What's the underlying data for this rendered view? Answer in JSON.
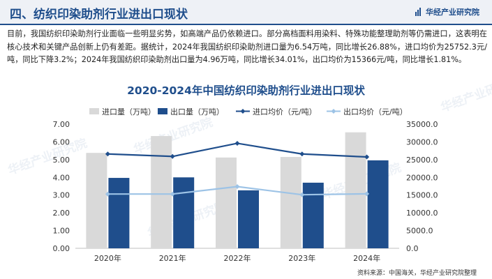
{
  "header": {
    "title": "四、纺织印染助剂行业进出口现状",
    "brand": "华经产业研究院"
  },
  "paragraph": "目前，我国纺织印染助剂行业面临一些明显劣势，如高端产品仍依赖进口。部分高档面料用染料、特殊功能整理助剂等仍需进口，这表明在核心技术和关键产品创新上仍有差距。据统计，2024年我国纺织印染助剂进口量为6.54万吨，同比增长26.88%，进口均价为25752.3元/吨，同比下降3.2%；2024年我国纺织印染助剂出口量为4.96万吨，同比增长34.01%，出口均价为15366元/吨，同比增长1.81%。",
  "source": "资料来源：中国海关，华经产业研究院整理",
  "watermark": "华经产业研究院",
  "colors": {
    "brand": "#1f4e8c",
    "import_volume": "#d9d9d9",
    "export_volume": "#1f4e8c",
    "import_price": "#1f4e8c",
    "export_price": "#9dc3e6"
  },
  "chart_data": {
    "type": "bar",
    "title": "2020-2024年中国纺织印染助剂行业进出口现状",
    "categories": [
      "2020年",
      "2021年",
      "2022年",
      "2023年",
      "2024年"
    ],
    "series": [
      {
        "name": "进口量（万吨）",
        "kind": "bar",
        "axis": "left",
        "values": [
          5.38,
          6.33,
          5.12,
          5.15,
          6.54
        ]
      },
      {
        "name": "出口量（万吨）",
        "kind": "bar",
        "axis": "left",
        "values": [
          3.97,
          4.0,
          3.27,
          3.7,
          4.96
        ]
      },
      {
        "name": "进口均价（元/吨）",
        "kind": "line",
        "axis": "right",
        "values": [
          26600,
          25900,
          29600,
          26600,
          25752.3
        ]
      },
      {
        "name": "出口均价（元/吨）",
        "kind": "line",
        "axis": "right",
        "values": [
          15300,
          15300,
          17400,
          15100,
          15366
        ]
      }
    ],
    "ylim_left": [
      0,
      7
    ],
    "ylim_right": [
      0,
      35000
    ],
    "yticks_left": [
      "0.00",
      "1.00",
      "2.00",
      "3.00",
      "4.00",
      "5.00",
      "6.00",
      "7.00"
    ],
    "yticks_right": [
      "0.0",
      "5000.0",
      "10000.0",
      "15000.0",
      "20000.0",
      "25000.0",
      "30000.0",
      "35000.0"
    ],
    "legend_position": "top",
    "grid": false
  }
}
